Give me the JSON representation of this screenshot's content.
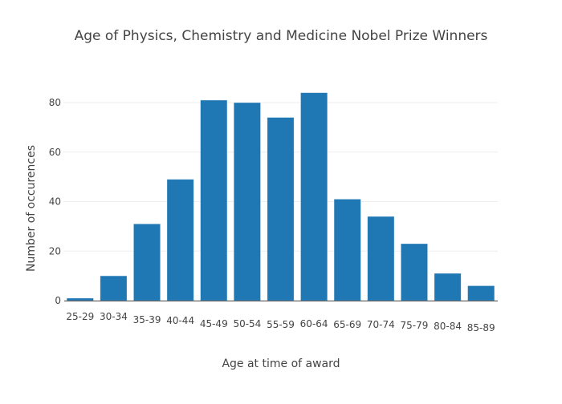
{
  "chart_data": {
    "type": "bar",
    "title": "Age of Physics, Chemistry and Medicine Nobel Prize Winners",
    "xlabel": "Age at time of award",
    "ylabel": "Number of occurences",
    "categories": [
      "25-29",
      "30-34",
      "35-39",
      "40-44",
      "45-49",
      "50-54",
      "55-59",
      "60-64",
      "65-69",
      "70-74",
      "75-79",
      "80-84",
      "85-89"
    ],
    "values": [
      1,
      10,
      31,
      49,
      81,
      80,
      74,
      84,
      41,
      34,
      23,
      11,
      6
    ],
    "yticks": [
      0,
      20,
      40,
      60,
      80
    ],
    "ylim": [
      0,
      90
    ],
    "grid": "horizontal",
    "bar_color": "#1f77b4",
    "legend": "none"
  }
}
